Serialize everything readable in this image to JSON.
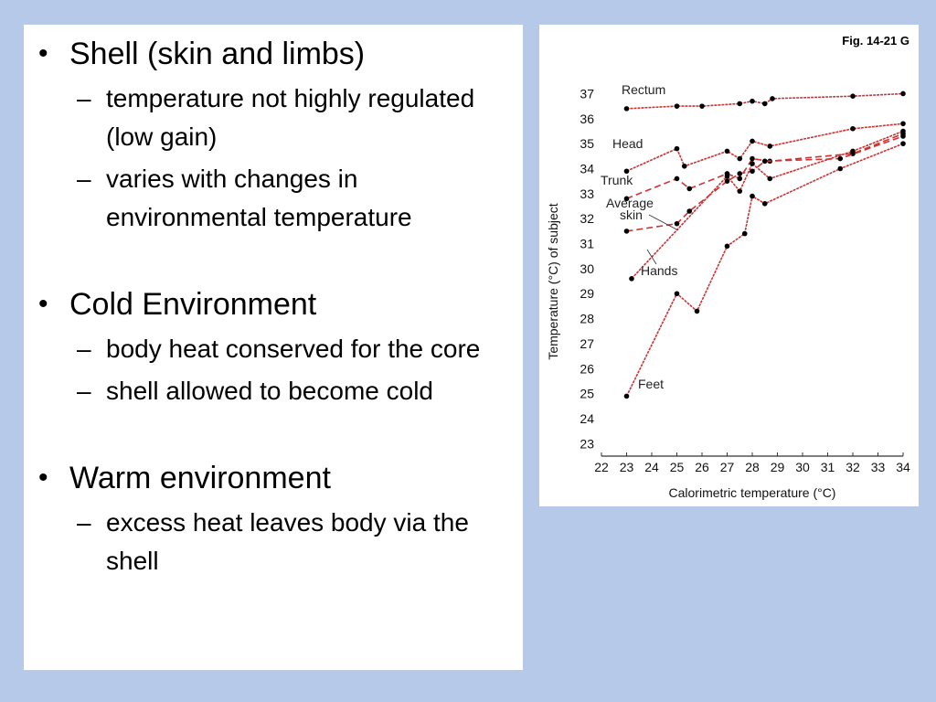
{
  "slide": {
    "bullets": [
      {
        "text": "Shell (skin and limbs)",
        "subs": [
          "temperature not highly regulated (low gain)",
          "varies with changes in environmental temperature"
        ]
      },
      {
        "text": "Cold Environment",
        "subs": [
          "body heat conserved for the core",
          "shell allowed to become cold"
        ]
      },
      {
        "text": "Warm environment",
        "subs": [
          "excess heat leaves body via the shell"
        ]
      }
    ]
  },
  "colors": {
    "background": "#b7c9e8",
    "panel": "#ffffff",
    "series_line": "#cc3333",
    "marker": "#000000"
  },
  "chart_data": {
    "type": "line",
    "fig_label": "Fig. 14-21 G",
    "xlabel": "Calorimetric temperature (°C)",
    "ylabel": "Temperature (°C) of subject",
    "xlim": [
      22,
      34
    ],
    "ylim": [
      22.5,
      37.2
    ],
    "xticks": [
      22,
      23,
      24,
      25,
      26,
      27,
      28,
      29,
      30,
      31,
      32,
      33,
      34
    ],
    "yticks": [
      23,
      24,
      25,
      26,
      27,
      28,
      29,
      30,
      31,
      32,
      33,
      34,
      35,
      36,
      37
    ],
    "grid": false,
    "series": [
      {
        "name": "Rectum",
        "label_lines": [
          "Rectum"
        ],
        "x": [
          23,
          25,
          26,
          27.5,
          28,
          28.5,
          28.8,
          32,
          34
        ],
        "y": [
          36.4,
          36.5,
          36.5,
          36.6,
          36.7,
          36.6,
          36.8,
          36.9,
          37.0
        ]
      },
      {
        "name": "Head",
        "label_lines": [
          "Head"
        ],
        "x": [
          23,
          25,
          25.3,
          27,
          27.5,
          28,
          28.7,
          32,
          34
        ],
        "y": [
          33.9,
          34.8,
          34.1,
          34.7,
          34.4,
          35.1,
          34.9,
          35.6,
          35.8
        ]
      },
      {
        "name": "Trunk",
        "label_lines": [
          "Trunk"
        ],
        "x": [
          23,
          25,
          25.5,
          27,
          27.5,
          28,
          28.7,
          32,
          34
        ],
        "y": [
          32.8,
          33.6,
          33.2,
          33.8,
          33.6,
          34.4,
          34.3,
          34.6,
          35.4
        ]
      },
      {
        "name": "Average skin",
        "label_lines": [
          "Average",
          "skin"
        ],
        "x": [
          23,
          25,
          25.5,
          27,
          27.5,
          28,
          28.5,
          31.5,
          34
        ],
        "y": [
          31.5,
          31.8,
          32.3,
          33.5,
          33.8,
          33.9,
          34.3,
          34.4,
          35.3
        ]
      },
      {
        "name": "Hands",
        "label_lines": [
          "Hands"
        ],
        "x": [
          23.2,
          27,
          27.5,
          28,
          28.7,
          32,
          34
        ],
        "y": [
          29.6,
          33.7,
          33.1,
          34.2,
          33.6,
          34.7,
          35.5
        ]
      },
      {
        "name": "Feet",
        "label_lines": [
          "Feet"
        ],
        "x": [
          23,
          25,
          25.8,
          27,
          27.7,
          28,
          28.5,
          31.5,
          34
        ],
        "y": [
          24.9,
          29.0,
          28.3,
          30.9,
          31.4,
          32.9,
          32.6,
          34.0,
          35.0
        ]
      }
    ]
  }
}
